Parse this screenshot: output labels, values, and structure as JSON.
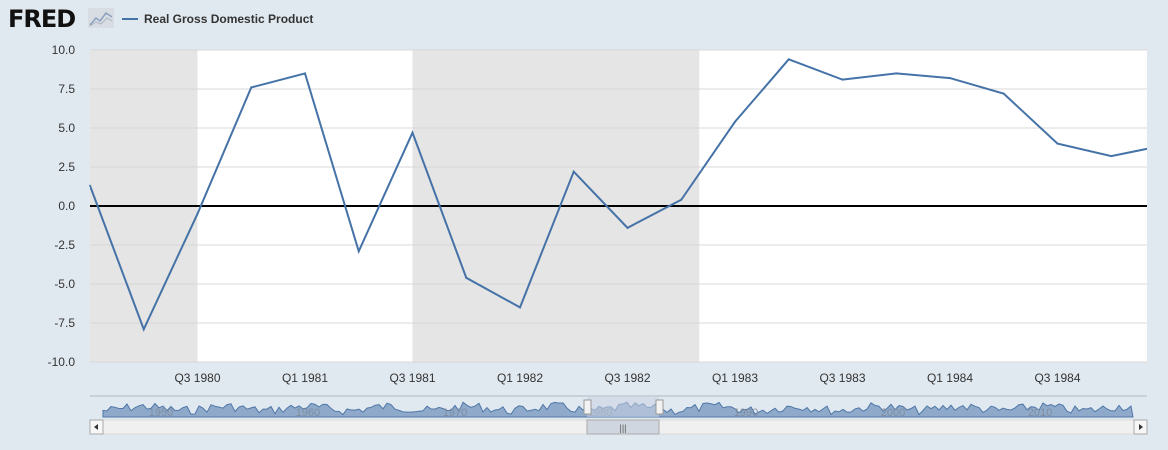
{
  "header": {
    "logo_text": "FRED",
    "legend_label": "Real Gross Domestic Product"
  },
  "colors": {
    "series": "#4572a7",
    "recession": "#e5e5e5",
    "background": "#e1e9f0",
    "zero_line": "#000000"
  },
  "icons": {
    "logo_graph": "line-chart-icon",
    "scroll_left": "triangle-left-icon",
    "scroll_right": "triangle-right-icon"
  },
  "chart_data": {
    "type": "line",
    "x": [
      "Q1 1980",
      "Q2 1980",
      "Q3 1980",
      "Q4 1980",
      "Q1 1981",
      "Q2 1981",
      "Q3 1981",
      "Q4 1981",
      "Q1 1982",
      "Q2 1982",
      "Q3 1982",
      "Q4 1982",
      "Q1 1983",
      "Q2 1983",
      "Q3 1983",
      "Q4 1983",
      "Q1 1984",
      "Q2 1984",
      "Q3 1984",
      "Q4 1984",
      "Q1 1985"
    ],
    "series": [
      {
        "name": "Real Gross Domestic Product",
        "values": [
          1.3,
          -7.9,
          -0.5,
          7.6,
          8.5,
          -2.9,
          4.7,
          -4.6,
          -6.5,
          2.2,
          -1.4,
          0.4,
          5.4,
          9.4,
          8.1,
          8.5,
          8.2,
          7.2,
          4.0,
          3.2,
          3.9
        ]
      }
    ],
    "x_tick_labels": [
      "Q3 1980",
      "Q1 1981",
      "Q3 1981",
      "Q1 1982",
      "Q3 1982",
      "Q1 1983",
      "Q3 1983",
      "Q1 1984",
      "Q3 1984"
    ],
    "y_tick_labels": [
      "10.0",
      "7.5",
      "5.0",
      "2.5",
      "0.0",
      "-2.5",
      "-5.0",
      "-7.5",
      "-10.0"
    ],
    "ylim": [
      -10,
      10
    ],
    "recessions": [
      [
        "Q1 1980",
        "Q3 1980"
      ],
      [
        "Q3 1981",
        "Q4 1982"
      ]
    ],
    "grid": true,
    "legend": "top-left"
  },
  "navigator": {
    "labels": [
      "1950",
      "1960",
      "1970",
      "1980",
      "1990",
      "2000",
      "2010"
    ]
  }
}
